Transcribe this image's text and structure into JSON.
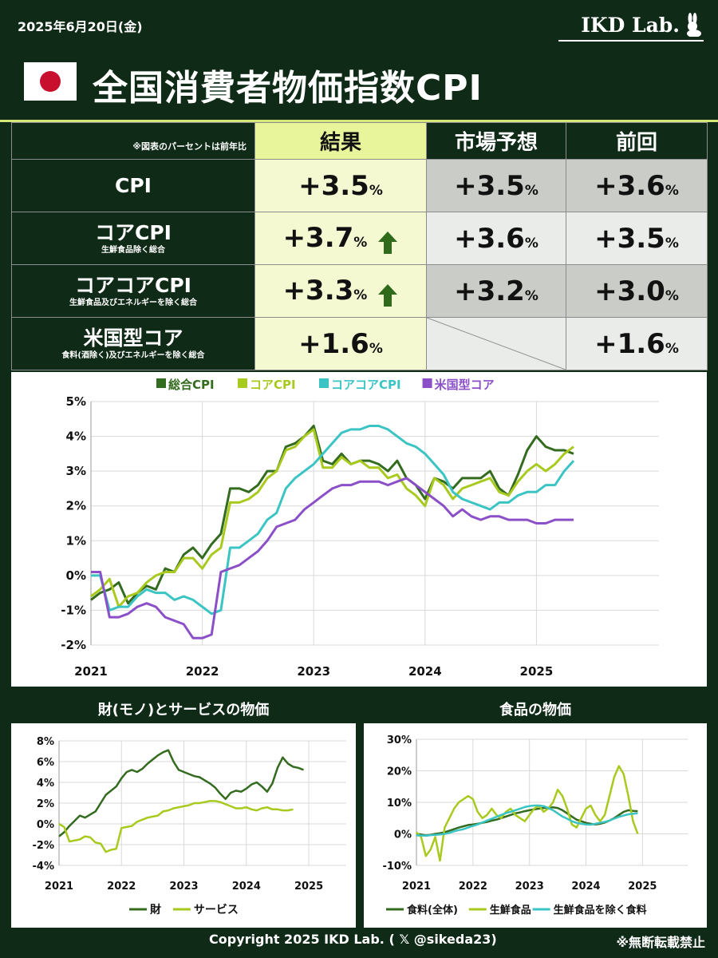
{
  "header": {
    "date": "2025年6月20日(金)",
    "brand": "IKD Lab.",
    "title": "全国消費者物価指数CPI",
    "flag_color": "#c8102e"
  },
  "table": {
    "note": "※図表のパーセントは前年比",
    "col_result": "結果",
    "col_forecast": "市場予想",
    "col_previous": "前回",
    "rows": [
      {
        "label": "CPI",
        "sub": "",
        "result": "+3.5",
        "forecast": "+3.5",
        "previous": "+3.6",
        "arrow": ""
      },
      {
        "label": "コアCPI",
        "sub": "生鮮食品除く総合",
        "result": "+3.7",
        "forecast": "+3.6",
        "previous": "+3.5",
        "arrow": "up"
      },
      {
        "label": "コアコアCPI",
        "sub": "生鮮食品及びエネルギーを除く総合",
        "result": "+3.3",
        "forecast": "+3.2",
        "previous": "+3.0",
        "arrow": "up"
      },
      {
        "label": "米国型コア",
        "sub": "食料(酒除く)及びエネルギーを除く総合",
        "result": "+1.6",
        "forecast": "",
        "previous": "+1.6",
        "arrow": ""
      }
    ],
    "pct": "%"
  },
  "chart_data": [
    {
      "type": "line",
      "title": "",
      "x_start": "2021-01",
      "xticks": [
        "2021",
        "2022",
        "2023",
        "2024",
        "2025"
      ],
      "yticks": [
        "5%",
        "4%",
        "3%",
        "2%",
        "1%",
        "0%",
        "-1%",
        "-2%"
      ],
      "ylim": [
        -2,
        5
      ],
      "legend": "top",
      "series": [
        {
          "name": "総合CPI",
          "color": "#336b1f",
          "values": [
            -0.7,
            -0.5,
            -0.4,
            -0.2,
            -0.8,
            -0.5,
            -0.3,
            -0.4,
            0.2,
            0.1,
            0.6,
            0.8,
            0.5,
            0.9,
            1.2,
            2.5,
            2.5,
            2.4,
            2.6,
            3.0,
            3.0,
            3.7,
            3.8,
            4.0,
            4.3,
            3.3,
            3.2,
            3.5,
            3.2,
            3.3,
            3.3,
            3.2,
            3.0,
            3.3,
            2.8,
            2.6,
            2.2,
            2.8,
            2.7,
            2.5,
            2.8,
            2.8,
            2.8,
            3.0,
            2.5,
            2.3,
            2.9,
            3.6,
            4.0,
            3.7,
            3.6,
            3.6,
            3.5
          ]
        },
        {
          "name": "コアCPI",
          "color": "#a8c91e",
          "values": [
            -0.6,
            -0.4,
            -0.1,
            -0.9,
            -0.6,
            -0.5,
            -0.2,
            0.0,
            0.1,
            0.1,
            0.5,
            0.5,
            0.2,
            0.6,
            0.8,
            2.1,
            2.1,
            2.2,
            2.4,
            2.8,
            3.0,
            3.6,
            3.7,
            4.0,
            4.2,
            3.1,
            3.1,
            3.4,
            3.2,
            3.3,
            3.1,
            3.1,
            2.8,
            2.9,
            2.5,
            2.3,
            2.0,
            2.8,
            2.6,
            2.2,
            2.5,
            2.6,
            2.7,
            2.8,
            2.4,
            2.3,
            2.7,
            3.0,
            3.2,
            3.0,
            3.2,
            3.5,
            3.7
          ]
        },
        {
          "name": "コアコアCPI",
          "color": "#3bc4c4",
          "values": [
            0.0,
            0.0,
            -1.0,
            -0.9,
            -0.9,
            -0.6,
            -0.4,
            -0.5,
            -0.5,
            -0.7,
            -0.6,
            -0.7,
            -0.9,
            -1.1,
            -1.0,
            0.8,
            0.8,
            1.0,
            1.2,
            1.6,
            1.8,
            2.5,
            2.8,
            3.0,
            3.2,
            3.5,
            3.8,
            4.1,
            4.2,
            4.2,
            4.3,
            4.3,
            4.2,
            4.0,
            3.8,
            3.7,
            3.5,
            3.2,
            2.9,
            2.4,
            2.2,
            2.1,
            2.0,
            1.9,
            2.1,
            2.1,
            2.3,
            2.4,
            2.4,
            2.6,
            2.6,
            3.0,
            3.3
          ]
        },
        {
          "name": "米国型コア",
          "color": "#8b4fc8",
          "values": [
            0.1,
            0.1,
            -1.2,
            -1.2,
            -1.1,
            -0.9,
            -0.8,
            -0.9,
            -1.2,
            -1.3,
            -1.4,
            -1.8,
            -1.8,
            -1.7,
            0.1,
            0.2,
            0.3,
            0.5,
            0.7,
            1.0,
            1.4,
            1.5,
            1.6,
            1.9,
            2.1,
            2.3,
            2.5,
            2.6,
            2.6,
            2.7,
            2.7,
            2.7,
            2.6,
            2.7,
            2.8,
            2.6,
            2.4,
            2.2,
            2.0,
            1.7,
            1.9,
            1.7,
            1.6,
            1.7,
            1.7,
            1.6,
            1.6,
            1.6,
            1.5,
            1.5,
            1.6,
            1.6,
            1.6
          ]
        }
      ]
    },
    {
      "type": "line",
      "title": "財(モノ)とサービスの物価",
      "xticks": [
        "2021",
        "2022",
        "2023",
        "2024",
        "2025"
      ],
      "yticks": [
        "8%",
        "6%",
        "4%",
        "2%",
        "0%",
        "-2%",
        "-4%"
      ],
      "ylim": [
        -4,
        8
      ],
      "legend": "bottom",
      "series": [
        {
          "name": "財",
          "color": "#336b1f",
          "values": [
            -1.2,
            -0.8,
            -0.2,
            0.3,
            0.8,
            0.6,
            0.9,
            1.2,
            2.0,
            2.8,
            3.2,
            3.6,
            4.4,
            5.0,
            5.2,
            5.0,
            5.3,
            5.8,
            6.2,
            6.6,
            6.9,
            7.1,
            6.0,
            5.2,
            5.0,
            4.8,
            4.6,
            4.5,
            4.2,
            3.9,
            3.5,
            2.9,
            2.4,
            3.0,
            3.2,
            3.1,
            3.4,
            3.8,
            4.0,
            3.6,
            3.1,
            3.9,
            5.4,
            6.4,
            5.8,
            5.5,
            5.4,
            5.2
          ]
        },
        {
          "name": "サービス",
          "color": "#a8c91e",
          "values": [
            0.0,
            -0.3,
            -1.7,
            -1.6,
            -1.5,
            -1.2,
            -1.3,
            -1.8,
            -1.9,
            -2.7,
            -2.5,
            -2.4,
            -0.4,
            -0.3,
            -0.2,
            0.2,
            0.4,
            0.6,
            0.7,
            0.8,
            1.2,
            1.3,
            1.5,
            1.6,
            1.7,
            1.8,
            2.0,
            2.0,
            2.1,
            2.2,
            2.2,
            2.1,
            1.9,
            1.7,
            1.5,
            1.5,
            1.6,
            1.4,
            1.3,
            1.5,
            1.6,
            1.4,
            1.4,
            1.3,
            1.3,
            1.4
          ]
        }
      ]
    },
    {
      "type": "line",
      "title": "食品の物価",
      "xticks": [
        "2021",
        "2022",
        "2023",
        "2024",
        "2025"
      ],
      "yticks": [
        "30%",
        "20%",
        "10%",
        "0%",
        "-10%"
      ],
      "ylim": [
        -10,
        30
      ],
      "legend": "bottom",
      "series": [
        {
          "name": "食料(全体)",
          "color": "#336b1f",
          "values": [
            0.0,
            -0.2,
            -0.5,
            -0.3,
            0.0,
            0.2,
            0.5,
            1.0,
            1.5,
            2.0,
            2.4,
            2.8,
            3.0,
            3.2,
            3.5,
            3.8,
            4.2,
            4.5,
            5.0,
            5.5,
            6.0,
            6.5,
            6.8,
            7.2,
            7.5,
            7.8,
            8.0,
            8.2,
            8.3,
            8.4,
            8.2,
            7.5,
            6.5,
            5.5,
            4.5,
            4.0,
            3.5,
            3.2,
            3.0,
            3.2,
            3.6,
            4.2,
            5.0,
            6.0,
            7.0,
            7.5,
            7.3,
            7.2
          ]
        },
        {
          "name": "生鮮食品",
          "color": "#a8c91e",
          "values": [
            0.5,
            -1.0,
            -7.0,
            -5.0,
            -1.0,
            -8.5,
            2.0,
            5.0,
            8.0,
            10.0,
            11.0,
            12.0,
            11.0,
            7.0,
            5.0,
            6.0,
            8.0,
            6.0,
            5.0,
            7.0,
            8.0,
            6.0,
            5.0,
            4.0,
            6.0,
            8.0,
            9.0,
            7.0,
            8.0,
            10.0,
            14.0,
            12.0,
            8.0,
            3.0,
            2.0,
            5.0,
            8.0,
            9.0,
            6.0,
            4.0,
            6.0,
            12.0,
            18.0,
            21.5,
            19.0,
            12.0,
            4.0,
            0.0
          ]
        },
        {
          "name": "生鮮食品を除く食料",
          "color": "#3bc4c4",
          "values": [
            -0.5,
            -0.5,
            -0.6,
            -0.4,
            -0.3,
            -0.2,
            0.0,
            0.3,
            0.8,
            1.2,
            1.5,
            2.0,
            2.5,
            3.0,
            3.6,
            4.2,
            4.8,
            5.4,
            6.0,
            6.6,
            7.0,
            7.5,
            8.0,
            8.5,
            8.8,
            9.0,
            9.0,
            8.8,
            8.2,
            7.5,
            6.5,
            5.5,
            4.8,
            4.0,
            3.5,
            3.2,
            3.0,
            2.9,
            3.2,
            3.5,
            3.8,
            4.2,
            4.8,
            5.4,
            5.8,
            6.2,
            6.4,
            6.5
          ]
        }
      ]
    }
  ],
  "sub_charts": {
    "goods_title": "財(モノ)とサービスの物価",
    "food_title": "食品の物価"
  },
  "footer": {
    "copyright": "Copyright 2025 IKD Lab. ( 𝕏 @sikeda23)",
    "notice": "※無断転載禁止"
  }
}
